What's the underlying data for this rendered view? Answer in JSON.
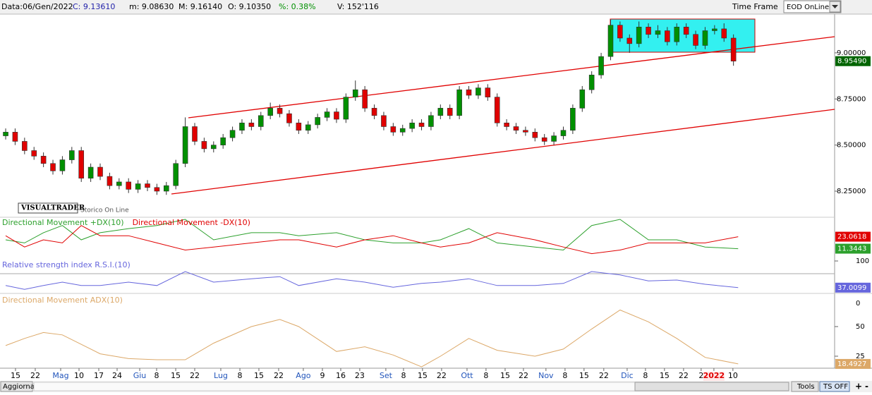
{
  "toolbar": {
    "items": [
      "Data:06/Gen/2022",
      "C: 9.13610",
      "m: 9.08630",
      "M: 9.16140",
      "O: 9.10350",
      "%: 0.38%",
      "V: 152'116"
    ],
    "time_frame": "Time Frame",
    "select": "EOD OnLine"
  },
  "logo": {
    "brand": "VISUALTRADER",
    "caption": "Storico On Line"
  },
  "footer": {
    "refresh": "Aggiorna",
    "tools": "Tools",
    "ts": "TS OFF",
    "plus": "+",
    "minus": "-"
  },
  "chart_data": {
    "type": "candlestick",
    "up_color": "#009000",
    "down_color": "#e00000",
    "xlim": [
      -0.6,
      87.7
    ],
    "ylim": [
      8.12,
      9.21
    ],
    "yticks": [
      {
        "value": 8.25,
        "label": "8.25000"
      },
      {
        "value": 8.5,
        "label": "8.50000"
      },
      {
        "value": 8.75,
        "label": "8.75000"
      },
      {
        "value": 9,
        "label": "9.00000"
      }
    ],
    "last_price": {
      "value": 8.9549,
      "label": "8.95490"
    },
    "xticks": [
      {
        "value": 1.04,
        "label": "15"
      },
      {
        "value": 3.13,
        "label": "22"
      },
      {
        "value": 5.82,
        "label": "Mag"
      },
      {
        "value": 7.76,
        "label": "10"
      },
      {
        "value": 9.85,
        "label": "17"
      },
      {
        "value": 11.79,
        "label": "24"
      },
      {
        "value": 14.18,
        "label": "Giu"
      },
      {
        "value": 15.97,
        "label": "8"
      },
      {
        "value": 17.99,
        "label": "15"
      },
      {
        "value": 20,
        "label": "22"
      },
      {
        "value": 22.76,
        "label": "Lug"
      },
      {
        "value": 24.78,
        "label": "8"
      },
      {
        "value": 26.79,
        "label": "15"
      },
      {
        "value": 28.88,
        "label": "22"
      },
      {
        "value": 31.49,
        "label": "Ago"
      },
      {
        "value": 33.51,
        "label": "9"
      },
      {
        "value": 35.45,
        "label": "16"
      },
      {
        "value": 37.46,
        "label": "23"
      },
      {
        "value": 40.22,
        "label": "Set"
      },
      {
        "value": 42.09,
        "label": "8"
      },
      {
        "value": 44.1,
        "label": "15"
      },
      {
        "value": 46.12,
        "label": "22"
      },
      {
        "value": 48.81,
        "label": "Ott"
      },
      {
        "value": 50.82,
        "label": "8"
      },
      {
        "value": 52.84,
        "label": "15"
      },
      {
        "value": 54.78,
        "label": "22"
      },
      {
        "value": 57.16,
        "label": "Nov"
      },
      {
        "value": 59.18,
        "label": "8"
      },
      {
        "value": 61.19,
        "label": "15"
      },
      {
        "value": 63.28,
        "label": "22"
      },
      {
        "value": 65.75,
        "label": "Dic"
      },
      {
        "value": 67.69,
        "label": "8"
      },
      {
        "value": 69.7,
        "label": "15"
      },
      {
        "value": 71.72,
        "label": "22"
      },
      {
        "value": 73.58,
        "label": "2"
      },
      {
        "value": 74.93,
        "label": "2022"
      },
      {
        "value": 76.94,
        "label": "10"
      }
    ],
    "candles": [
      [
        8.55,
        8.59,
        8.53,
        8.57
      ],
      [
        8.57,
        8.59,
        8.5,
        8.52
      ],
      [
        8.52,
        8.54,
        8.45,
        8.47
      ],
      [
        8.47,
        8.49,
        8.42,
        8.44
      ],
      [
        8.44,
        8.46,
        8.38,
        8.4
      ],
      [
        8.4,
        8.42,
        8.34,
        8.36
      ],
      [
        8.36,
        8.44,
        8.34,
        8.42
      ],
      [
        8.42,
        8.49,
        8.4,
        8.47
      ],
      [
        8.47,
        8.49,
        8.3,
        8.32
      ],
      [
        8.32,
        8.4,
        8.3,
        8.38
      ],
      [
        8.38,
        8.4,
        8.31,
        8.33
      ],
      [
        8.33,
        8.35,
        8.26,
        8.28
      ],
      [
        8.28,
        8.32,
        8.26,
        8.3
      ],
      [
        8.3,
        8.32,
        8.24,
        8.26
      ],
      [
        8.26,
        8.31,
        8.24,
        8.29
      ],
      [
        8.29,
        8.31,
        8.25,
        8.27
      ],
      [
        8.27,
        8.29,
        8.23,
        8.25
      ],
      [
        8.25,
        8.3,
        8.23,
        8.28
      ],
      [
        8.28,
        8.42,
        8.26,
        8.4
      ],
      [
        8.4,
        8.65,
        8.38,
        8.6
      ],
      [
        8.6,
        8.62,
        8.5,
        8.52
      ],
      [
        8.52,
        8.54,
        8.46,
        8.48
      ],
      [
        8.48,
        8.52,
        8.46,
        8.5
      ],
      [
        8.5,
        8.56,
        8.48,
        8.54
      ],
      [
        8.54,
        8.6,
        8.52,
        8.58
      ],
      [
        8.58,
        8.64,
        8.56,
        8.62
      ],
      [
        8.62,
        8.64,
        8.58,
        8.6
      ],
      [
        8.6,
        8.68,
        8.58,
        8.66
      ],
      [
        8.66,
        8.73,
        8.64,
        8.7
      ],
      [
        8.7,
        8.72,
        8.65,
        8.67
      ],
      [
        8.67,
        8.69,
        8.6,
        8.62
      ],
      [
        8.62,
        8.64,
        8.56,
        8.58
      ],
      [
        8.58,
        8.63,
        8.56,
        8.61
      ],
      [
        8.61,
        8.67,
        8.59,
        8.65
      ],
      [
        8.65,
        8.7,
        8.63,
        8.68
      ],
      [
        8.68,
        8.7,
        8.62,
        8.64
      ],
      [
        8.64,
        8.78,
        8.62,
        8.76
      ],
      [
        8.76,
        8.85,
        8.74,
        8.8
      ],
      [
        8.8,
        8.82,
        8.68,
        8.7
      ],
      [
        8.7,
        8.72,
        8.64,
        8.66
      ],
      [
        8.66,
        8.68,
        8.58,
        8.6
      ],
      [
        8.6,
        8.62,
        8.55,
        8.57
      ],
      [
        8.57,
        8.61,
        8.55,
        8.59
      ],
      [
        8.59,
        8.64,
        8.57,
        8.62
      ],
      [
        8.62,
        8.64,
        8.58,
        8.6
      ],
      [
        8.6,
        8.68,
        8.58,
        8.66
      ],
      [
        8.66,
        8.72,
        8.64,
        8.7
      ],
      [
        8.7,
        8.72,
        8.64,
        8.66
      ],
      [
        8.66,
        8.82,
        8.64,
        8.8
      ],
      [
        8.8,
        8.82,
        8.75,
        8.77
      ],
      [
        8.77,
        8.83,
        8.75,
        8.81
      ],
      [
        8.81,
        8.83,
        8.74,
        8.76
      ],
      [
        8.76,
        8.78,
        8.6,
        8.62
      ],
      [
        8.62,
        8.64,
        8.58,
        8.6
      ],
      [
        8.6,
        8.62,
        8.56,
        8.58
      ],
      [
        8.58,
        8.6,
        8.55,
        8.57
      ],
      [
        8.57,
        8.59,
        8.52,
        8.54
      ],
      [
        8.54,
        8.56,
        8.5,
        8.52
      ],
      [
        8.52,
        8.57,
        8.5,
        8.55
      ],
      [
        8.55,
        8.6,
        8.53,
        8.58
      ],
      [
        8.58,
        8.72,
        8.56,
        8.7
      ],
      [
        8.7,
        8.82,
        8.68,
        8.8
      ],
      [
        8.8,
        8.9,
        8.78,
        8.88
      ],
      [
        8.88,
        9.0,
        8.86,
        8.98
      ],
      [
        8.98,
        9.18,
        8.96,
        9.15
      ],
      [
        9.15,
        9.17,
        9.06,
        9.08
      ],
      [
        9.08,
        9.1,
        9.0,
        9.05
      ],
      [
        9.05,
        9.17,
        9.03,
        9.14
      ],
      [
        9.14,
        9.16,
        9.08,
        9.1
      ],
      [
        9.1,
        9.15,
        9.08,
        9.12
      ],
      [
        9.12,
        9.14,
        9.04,
        9.06
      ],
      [
        9.06,
        9.16,
        9.04,
        9.14
      ],
      [
        9.14,
        9.16,
        9.08,
        9.1
      ],
      [
        9.1,
        9.12,
        9.02,
        9.04
      ],
      [
        9.04,
        9.14,
        9.02,
        9.12
      ],
      [
        9.12,
        9.15,
        9.1,
        9.13
      ],
      [
        9.13,
        9.16,
        9.06,
        9.08
      ],
      [
        9.08,
        9.1,
        8.93,
        8.955
      ]
    ],
    "indicators": [
      {
        "type": "line",
        "ylim": [
          0,
          40.7
        ],
        "x": [
          0,
          2,
          4,
          6,
          8,
          10,
          13,
          16,
          19,
          22,
          26,
          29,
          31,
          35,
          38,
          41,
          44,
          46,
          49,
          52,
          56,
          59,
          62,
          65,
          68,
          71,
          74,
          77.5
        ],
        "series": [
          {
            "name": "Directional Movement +DX(10)",
            "color": "#2ca02c",
            "values": [
              20,
              17,
              27,
              34,
              20,
              27,
              31,
              34,
              40,
              20,
              27,
              27,
              24,
              27,
              20,
              17,
              17,
              20,
              31,
              17,
              13,
              10,
              34,
              40,
              20,
              20,
              13,
              11.3443
            ],
            "last_label": "11.3443"
          },
          {
            "name": "Directional Movement -DX(10)",
            "color": "#e00000",
            "values": [
              24,
              13,
              20,
              17,
              34,
              24,
              24,
              17,
              10,
              13,
              17,
              20,
              20,
              13,
              20,
              24,
              17,
              13,
              17,
              27,
              20,
              13,
              6.5,
              10,
              17,
              17,
              17,
              23.0618
            ],
            "last_label": "23.0618"
          }
        ]
      },
      {
        "type": "line",
        "ylim": [
          20,
          100
        ],
        "yticks": [
          100
        ],
        "hlines": [
          70
        ],
        "x": [
          0,
          2,
          4,
          6,
          8,
          10,
          13,
          16,
          19,
          22,
          26,
          29,
          31,
          35,
          38,
          41,
          44,
          46,
          49,
          52,
          56,
          59,
          62,
          65,
          68,
          71,
          74,
          77.5
        ],
        "series": [
          {
            "name": "Relative strength index R.S.I.(10)",
            "color": "#6666dd",
            "values": [
              42,
              33,
              42,
              50,
              42,
              42,
              50,
              42,
              75,
              50,
              58,
              63,
              42,
              58,
              50,
              38,
              47,
              50,
              58,
              42,
              42,
              47,
              75,
              67,
              53,
              55,
              45,
              37.0099
            ],
            "last_label": "37.0099"
          }
        ]
      },
      {
        "type": "line",
        "ylim": [
          13.1,
          75.6
        ],
        "yticks": [
          25,
          50
        ],
        "top_label": "0",
        "x": [
          0,
          2,
          4,
          6,
          8,
          10,
          13,
          16,
          19,
          22,
          26,
          29,
          31,
          35,
          38,
          41,
          44,
          46,
          49,
          52,
          56,
          59,
          62,
          65,
          68,
          71,
          74,
          77.5
        ],
        "series": [
          {
            "name": "Directional Movement ADX(10)",
            "color": "#dca868",
            "values": [
              34,
              40,
              45,
              43,
              35,
              27,
              23,
              22,
              22,
              36,
              50,
              56,
              50,
              29,
              33,
              26,
              16,
              25,
              40,
              30,
              25,
              31,
              48,
              64,
              54,
              40,
              24,
              18.4927
            ],
            "last_label": "18.4927"
          }
        ]
      }
    ]
  }
}
